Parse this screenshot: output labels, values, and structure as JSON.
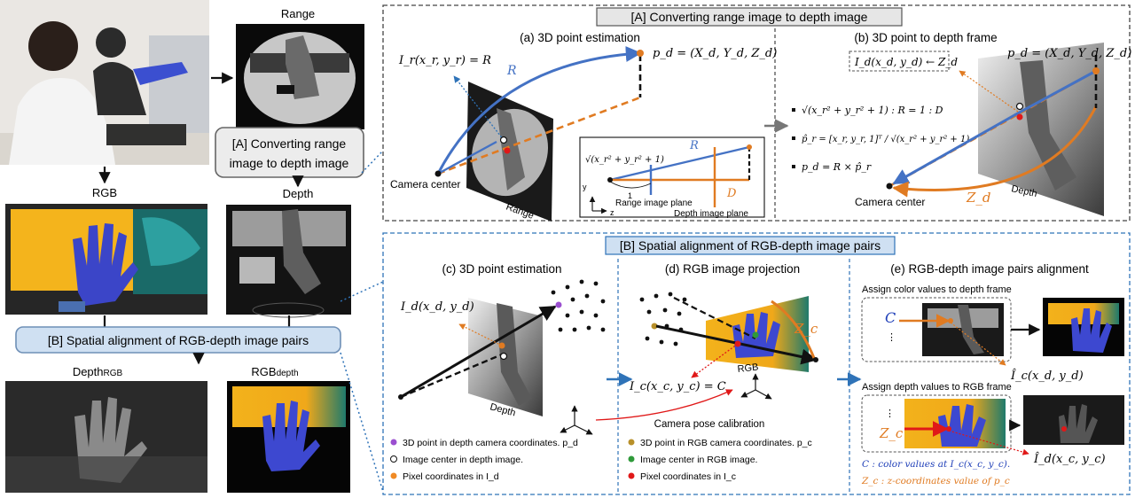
{
  "left": {
    "range_label": "Range",
    "rgb_label": "RGB",
    "depth_label": "Depth",
    "depthrgb_label": "Depth",
    "depthrgb_sub": "RGB",
    "rgbdepth_label": "RGB",
    "rgbdepth_sub": "depth",
    "callout_a_line1": "[A] Converting range",
    "callout_a_line2": "image to depth image",
    "callout_b": "[B] Spatial alignment of RGB-depth image pairs"
  },
  "panel_a": {
    "title": "[A] Converting range image to depth image",
    "a_title": "(a) 3D point estimation",
    "b_title": "(b) 3D point to depth frame",
    "ir_expr": "I_r(x_r, y_r) = R",
    "pd_expr": "p_d = (X_d, Y_d, Z_d)",
    "pd_expr2": "p_d = (X_d, Y_d, Z_d)",
    "r_label": "R",
    "camera_center": "Camera center",
    "range_caption": "Range",
    "depth_caption": "Depth",
    "inset": {
      "sqrt": "√(x_r² + y_r² + 1)",
      "r": "R",
      "d": "D",
      "one": "1",
      "y": "y",
      "z": "z",
      "range_plane": "Range image plane",
      "depth_plane": "Depth image plane"
    },
    "equations": [
      "√(x_r² + y_r² + 1) : R = 1 : D",
      "p̂_r = [x_r, y_r, 1]ᵀ / √(x_r² + y_r² + 1)",
      "p_d = R × p̂_r"
    ],
    "id_box": "I_d(x_d, y_d) ← Z_d",
    "zd": "Z_d",
    "camera_center2": "Camera center"
  },
  "panel_b": {
    "title": "[B] Spatial alignment of RGB-depth image pairs",
    "c_title": "(c) 3D point estimation",
    "d_title": "(d) RGB image projection",
    "e_title": "(e) RGB-depth image pairs alignment",
    "id_expr": "I_d(x_d, y_d)",
    "ic_expr": "I_c(x_c, y_c) = C",
    "zc": "Z_c",
    "depth_caption": "Depth",
    "rgb_caption": "RGB",
    "calib": "Camera pose calibration",
    "legend_c": [
      {
        "color": "#9b4fd0",
        "text": "3D point in depth camera coordinates. p_d"
      },
      {
        "color": "#ffffff",
        "text": "Image center in depth image."
      },
      {
        "color": "#f08a24",
        "text": "Pixel coordinates in I_d"
      }
    ],
    "legend_d": [
      {
        "color": "#b8902a",
        "text": "3D point in RGB camera coordinates. p_c"
      },
      {
        "color": "#2f9a3a",
        "text": "Image center in RGB image."
      },
      {
        "color": "#e01818",
        "text": "Pixel coordinates in I_c"
      }
    ],
    "assign_color": "Assign color values to depth frame",
    "assign_depth": "Assign depth values to RGB frame",
    "c_big": "C",
    "zc_small": "Z_c",
    "ic_hat": "Î_c(x_d, y_d)",
    "id_hat": "Î_d(x_c, y_c)",
    "note_c": "C : color values at I_c(x_c, y_c).",
    "note_zc": "Z_c : z-coordinates value of p_c"
  },
  "colors": {
    "blue": "#4472c4",
    "orange": "#e07b22",
    "dash_blue": "#2f73b8",
    "red": "#e01818"
  }
}
